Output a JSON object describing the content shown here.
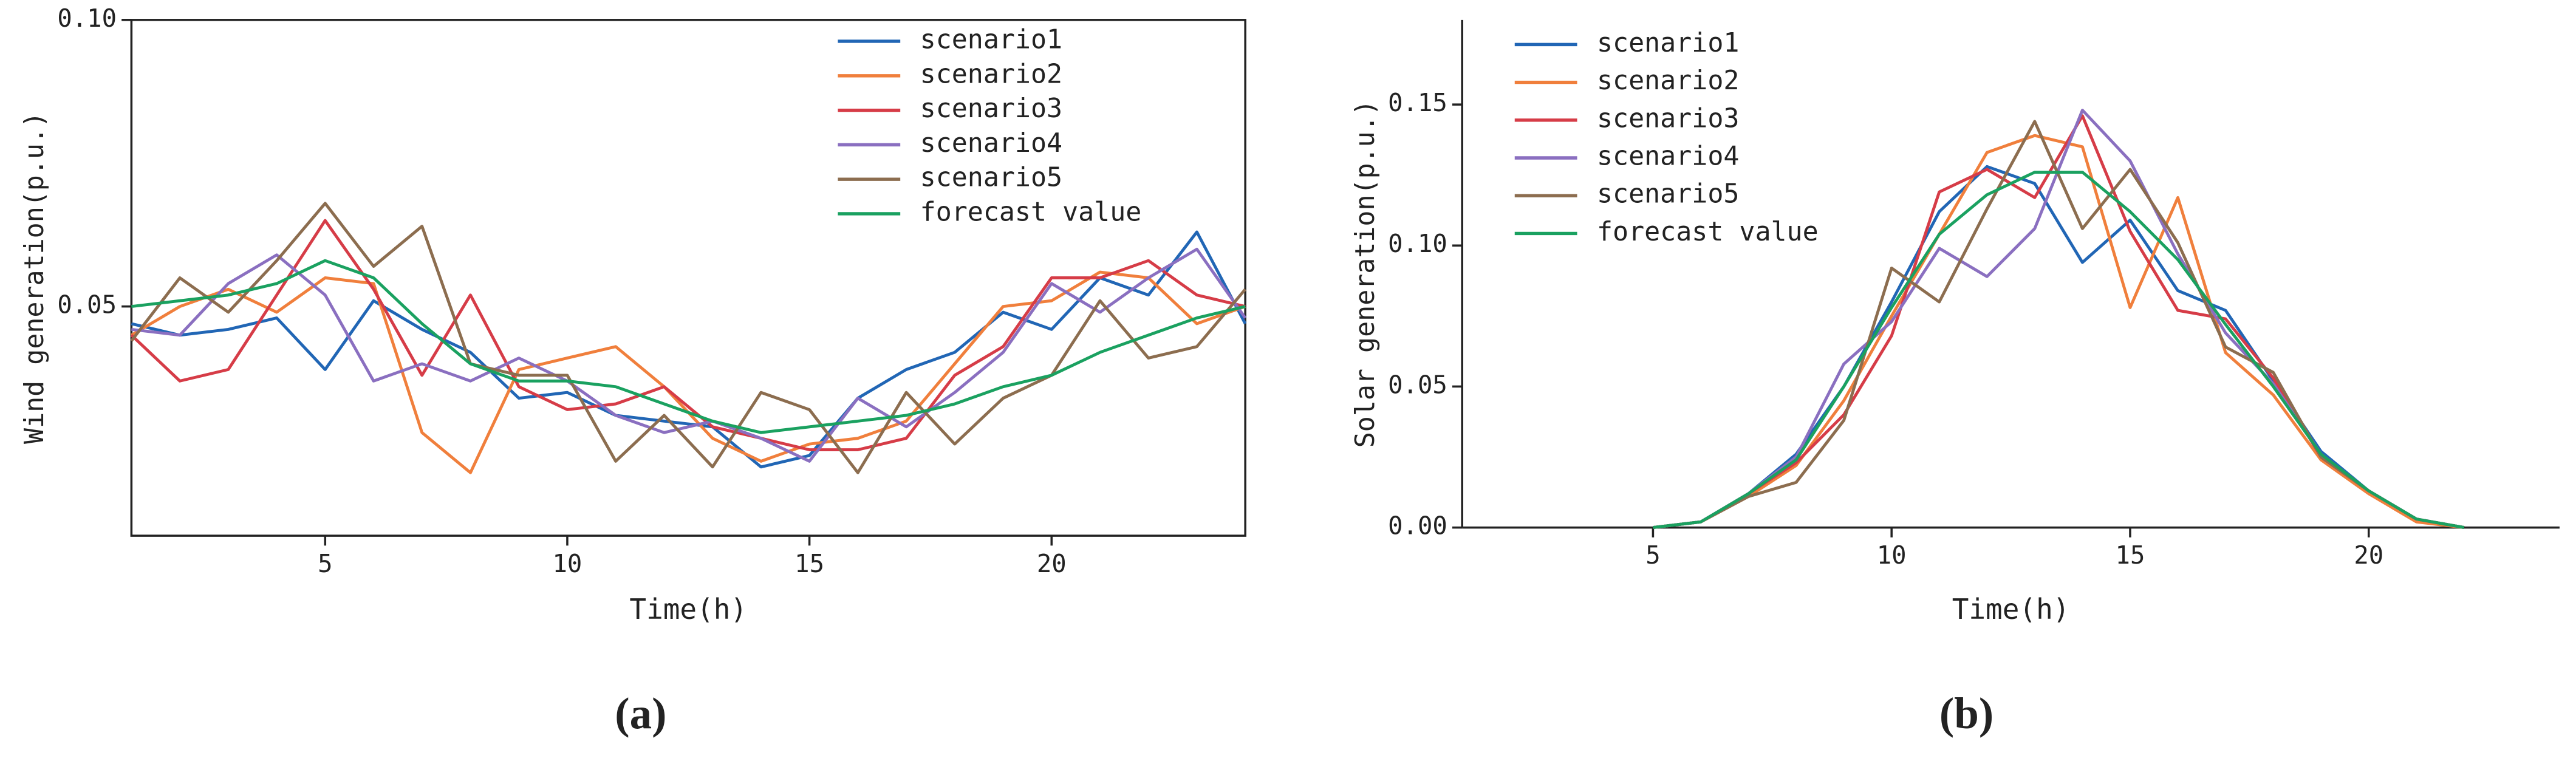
{
  "chart_data": [
    {
      "type": "line",
      "caption": "(a)",
      "xlabel": "Time(h)",
      "ylabel": "Wind generation(p.u.)",
      "x": [
        1,
        2,
        3,
        4,
        5,
        6,
        7,
        8,
        9,
        10,
        11,
        12,
        13,
        14,
        15,
        16,
        17,
        18,
        19,
        20,
        21,
        22,
        23,
        24
      ],
      "xlim": [
        1,
        24
      ],
      "xticks": [
        5,
        10,
        15,
        20
      ],
      "ylim": [
        0.01,
        0.1
      ],
      "yticks": [
        0.05,
        {
          "value": 0.1,
          "label": "0.10"
        }
      ],
      "legend": "upper right",
      "series": [
        {
          "name": "scenario1",
          "color": "#2166b5",
          "values": [
            0.047,
            0.045,
            0.046,
            0.048,
            0.039,
            0.051,
            0.046,
            0.042,
            0.034,
            0.035,
            0.031,
            0.03,
            0.029,
            0.022,
            0.024,
            0.034,
            0.039,
            0.042,
            0.049,
            0.046,
            0.055,
            0.052,
            0.063,
            0.047
          ]
        },
        {
          "name": "scenario2",
          "color": "#f07f3c",
          "values": [
            0.045,
            0.05,
            0.053,
            0.049,
            0.055,
            0.054,
            0.028,
            0.021,
            0.039,
            0.041,
            0.043,
            0.036,
            0.027,
            0.023,
            0.026,
            0.027,
            0.03,
            0.04,
            0.05,
            0.051,
            0.056,
            0.055,
            0.047,
            0.05
          ]
        },
        {
          "name": "scenario3",
          "color": "#d63c47",
          "values": [
            0.045,
            0.037,
            0.039,
            0.052,
            0.065,
            0.053,
            0.038,
            0.052,
            0.036,
            0.032,
            0.033,
            0.036,
            0.029,
            0.027,
            0.025,
            0.025,
            0.027,
            0.038,
            0.043,
            0.055,
            0.055,
            0.058,
            0.052,
            0.05
          ]
        },
        {
          "name": "scenario4",
          "color": "#8a6fc0",
          "values": [
            0.046,
            0.045,
            0.054,
            0.059,
            0.052,
            0.037,
            0.04,
            0.037,
            0.041,
            0.037,
            0.031,
            0.028,
            0.03,
            0.027,
            0.023,
            0.034,
            0.029,
            0.035,
            0.042,
            0.054,
            0.049,
            0.055,
            0.06,
            0.048
          ]
        },
        {
          "name": "scenario5",
          "color": "#8c6d4f",
          "values": [
            0.044,
            0.055,
            0.049,
            0.058,
            0.068,
            0.057,
            0.064,
            0.04,
            0.038,
            0.038,
            0.023,
            0.031,
            0.022,
            0.035,
            0.032,
            0.021,
            0.035,
            0.026,
            0.034,
            0.038,
            0.051,
            0.041,
            0.043,
            0.053
          ]
        },
        {
          "name": "forecast value",
          "color": "#1aa160",
          "values": [
            0.05,
            0.051,
            0.052,
            0.054,
            0.058,
            0.055,
            0.047,
            0.04,
            0.037,
            0.037,
            0.036,
            0.033,
            0.03,
            0.028,
            0.029,
            0.03,
            0.031,
            0.033,
            0.036,
            0.038,
            0.042,
            0.045,
            0.048,
            0.05
          ]
        }
      ]
    },
    {
      "type": "line",
      "caption": "(b)",
      "xlabel": "Time(h)",
      "ylabel": "Solar generation(p.u.)",
      "x": [
        5,
        6,
        7,
        8,
        9,
        10,
        11,
        12,
        13,
        14,
        15,
        16,
        17,
        18,
        19,
        20,
        21,
        22
      ],
      "xlim": [
        1,
        24
      ],
      "xticks": [
        5,
        10,
        15,
        20
      ],
      "ylim": [
        0,
        0.18
      ],
      "yticks": [
        {
          "value": 0,
          "label": "0.00"
        },
        0.05,
        {
          "value": 0.1,
          "label": "0.10"
        },
        0.15
      ],
      "legend": "upper left",
      "series": [
        {
          "name": "scenario1",
          "color": "#2166b5",
          "values": [
            0,
            0.002,
            0.012,
            0.026,
            0.05,
            0.08,
            0.112,
            0.128,
            0.122,
            0.094,
            0.109,
            0.084,
            0.077,
            0.052,
            0.027,
            0.013,
            0.003,
            0
          ]
        },
        {
          "name": "scenario2",
          "color": "#f07f3c",
          "values": [
            0,
            0.002,
            0.011,
            0.022,
            0.045,
            0.075,
            0.104,
            0.133,
            0.139,
            0.135,
            0.078,
            0.117,
            0.062,
            0.047,
            0.024,
            0.012,
            0.002,
            0
          ]
        },
        {
          "name": "scenario3",
          "color": "#d63c47",
          "values": [
            0,
            0.002,
            0.012,
            0.023,
            0.04,
            0.068,
            0.119,
            0.127,
            0.117,
            0.146,
            0.105,
            0.077,
            0.074,
            0.053,
            0.025,
            0.013,
            0.003,
            0
          ]
        },
        {
          "name": "scenario4",
          "color": "#8a6fc0",
          "values": [
            0,
            0.002,
            0.012,
            0.025,
            0.058,
            0.073,
            0.099,
            0.089,
            0.106,
            0.148,
            0.13,
            0.097,
            0.069,
            0.051,
            0.026,
            0.013,
            0.003,
            0
          ]
        },
        {
          "name": "scenario5",
          "color": "#8c6d4f",
          "values": [
            0,
            0.002,
            0.011,
            0.016,
            0.038,
            0.092,
            0.08,
            0.113,
            0.144,
            0.106,
            0.127,
            0.101,
            0.064,
            0.055,
            0.025,
            0.013,
            0.003,
            0
          ]
        },
        {
          "name": "forecast value",
          "color": "#1aa160",
          "values": [
            0,
            0.002,
            0.012,
            0.024,
            0.05,
            0.078,
            0.104,
            0.118,
            0.126,
            0.126,
            0.112,
            0.095,
            0.072,
            0.05,
            0.026,
            0.013,
            0.003,
            0
          ]
        }
      ]
    }
  ]
}
